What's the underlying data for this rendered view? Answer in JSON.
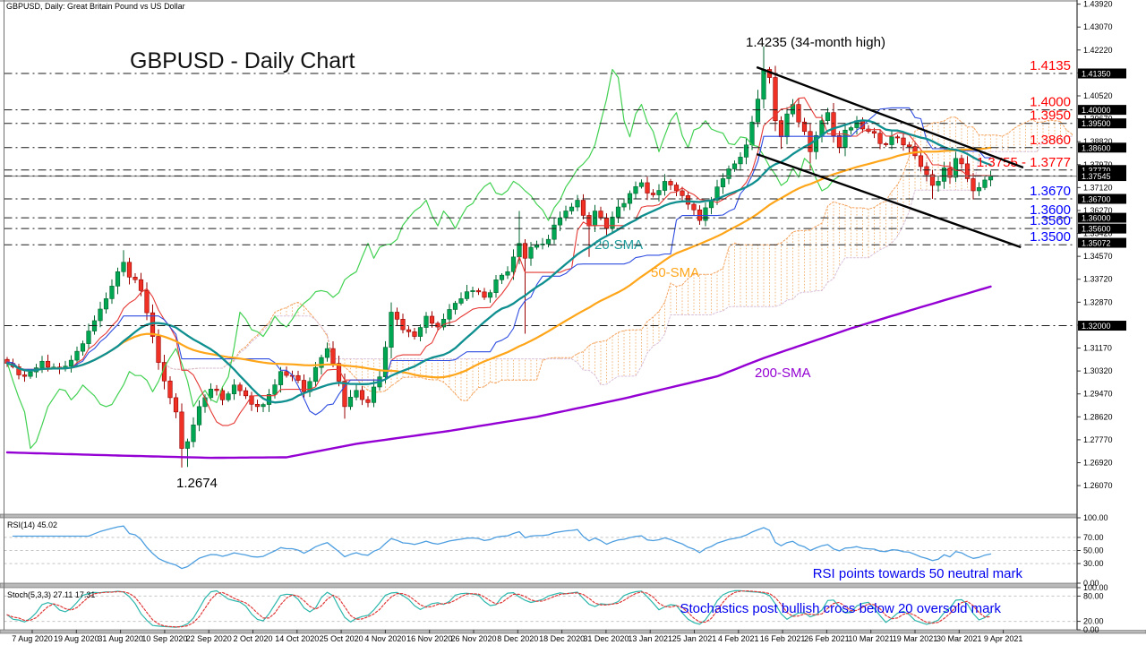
{
  "window": {
    "symbol_label": "GBPUSD, Daily: Great Britain Pound vs US Dollar"
  },
  "chart_data": {
    "type": "candlestick",
    "title": "GBPUSD - Daily Chart",
    "instrument": "GBPUSD",
    "timeframe": "Daily",
    "x_labels": [
      "7 Aug 2020",
      "19 Aug 2020",
      "31 Aug 2020",
      "10 Sep 2020",
      "22 Sep 2020",
      "2 Oct 2020",
      "14 Oct 2020",
      "25 Oct 2020",
      "4 Nov 2020",
      "16 Nov 2020",
      "26 Nov 2020",
      "8 Dec 2020",
      "18 Dec 2020",
      "31 Dec 2020",
      "13 Jan 2021",
      "25 Jan 2021",
      "4 Feb 2021",
      "16 Feb 2021",
      "26 Feb 2021",
      "10 Mar 2021",
      "19 Mar 2021",
      "30 Mar 2021",
      "9 Apr 2021"
    ],
    "main": {
      "bars": 170,
      "price_top": 1.4404,
      "price_bottom": 1.2501,
      "current_price": 1.37545,
      "axis_ticks": [
        1.4392,
        1.4307,
        1.4222,
        1.4137,
        1.4052,
        1.3967,
        1.3882,
        1.3797,
        1.3712,
        1.3627,
        1.3542,
        1.3457,
        1.3372,
        1.3287,
        1.3202,
        1.3117,
        1.3032,
        1.2947,
        1.2862,
        1.2777,
        1.2692,
        1.2607
      ],
      "axis_boxes": [
        {
          "label": "1.41350",
          "price": 1.4135
        },
        {
          "label": "1.40000",
          "price": 1.4
        },
        {
          "label": "1.39500",
          "price": 1.395
        },
        {
          "label": "1.38600",
          "price": 1.386
        },
        {
          "label": "1.37770",
          "price": 1.3777
        },
        {
          "label": "1.37545",
          "price": 1.37545
        },
        {
          "label": "1.36700",
          "price": 1.367
        },
        {
          "label": "1.36000",
          "price": 1.36
        },
        {
          "label": "1.35600",
          "price": 1.356
        },
        {
          "label": "1.35072",
          "price": 1.35072
        },
        {
          "label": "1.32000",
          "price": 1.32
        }
      ],
      "levels": [
        {
          "label": "1.4135",
          "price": 1.4135,
          "color": "#FF0000"
        },
        {
          "label": "1.4000",
          "price": 1.4,
          "color": "#FF0000"
        },
        {
          "label": "1.3950",
          "price": 1.395,
          "color": "#FF0000"
        },
        {
          "label": "1.3860",
          "price": 1.386,
          "color": "#FF0000"
        },
        {
          "label": "1.3755 - 1.3777",
          "price": 1.3777,
          "price2": 1.3755,
          "color": "#FF0000"
        },
        {
          "label": "1.3670",
          "price": 1.367,
          "color": "#0000FF"
        },
        {
          "label": "1.3600",
          "price": 1.36,
          "color": "#0000FF"
        },
        {
          "label": "1.3560",
          "price": 1.356,
          "color": "#0000FF"
        },
        {
          "label": "1.3500",
          "price": 1.35,
          "color": "#0000FF"
        },
        {
          "label": "",
          "price": 1.32,
          "color": "#000000"
        }
      ],
      "close_anchors": [
        [
          0,
          1.306
        ],
        [
          3,
          1.3012
        ],
        [
          6,
          1.3068
        ],
        [
          9,
          1.304
        ],
        [
          12,
          1.3105
        ],
        [
          14,
          1.318
        ],
        [
          17,
          1.33
        ],
        [
          19,
          1.34
        ],
        [
          20,
          1.3435
        ],
        [
          21,
          1.338
        ],
        [
          23,
          1.333
        ],
        [
          25,
          1.316
        ],
        [
          27,
          1.2995
        ],
        [
          29,
          1.288
        ],
        [
          30,
          1.2745
        ],
        [
          31,
          1.277
        ],
        [
          33,
          1.29
        ],
        [
          35,
          1.2965
        ],
        [
          37,
          1.2925
        ],
        [
          39,
          1.298
        ],
        [
          41,
          1.294
        ],
        [
          43,
          1.29
        ],
        [
          45,
          1.2945
        ],
        [
          47,
          1.303
        ],
        [
          49,
          1.3015
        ],
        [
          51,
          1.2955
        ],
        [
          53,
          1.3045
        ],
        [
          55,
          1.3115
        ],
        [
          56,
          1.306
        ],
        [
          58,
          1.29
        ],
        [
          60,
          1.296
        ],
        [
          62,
          1.2915
        ],
        [
          64,
          1.301
        ],
        [
          66,
          1.325
        ],
        [
          68,
          1.3185
        ],
        [
          70,
          1.316
        ],
        [
          72,
          1.3235
        ],
        [
          74,
          1.3195
        ],
        [
          76,
          1.326
        ],
        [
          78,
          1.33
        ],
        [
          80,
          1.333
        ],
        [
          82,
          1.3305
        ],
        [
          84,
          1.337
        ],
        [
          86,
          1.34
        ],
        [
          88,
          1.3505
        ],
        [
          89,
          1.345
        ],
        [
          91,
          1.35
        ],
        [
          93,
          1.352
        ],
        [
          95,
          1.36
        ],
        [
          97,
          1.364
        ],
        [
          98,
          1.3665
        ],
        [
          100,
          1.357
        ],
        [
          101,
          1.3625
        ],
        [
          103,
          1.356
        ],
        [
          105,
          1.364
        ],
        [
          107,
          1.369
        ],
        [
          109,
          1.373
        ],
        [
          111,
          1.3685
        ],
        [
          113,
          1.3735
        ],
        [
          115,
          1.37
        ],
        [
          117,
          1.365
        ],
        [
          119,
          1.359
        ],
        [
          121,
          1.3665
        ],
        [
          123,
          1.3745
        ],
        [
          125,
          1.38
        ],
        [
          127,
          1.387
        ],
        [
          128,
          1.3955
        ],
        [
          129,
          1.404
        ],
        [
          130,
          1.415
        ],
        [
          131,
          1.412
        ],
        [
          132,
          1.396
        ],
        [
          133,
          1.39
        ],
        [
          134,
          1.3985
        ],
        [
          135,
          1.402
        ],
        [
          136,
          1.3955
        ],
        [
          137,
          1.392
        ],
        [
          138,
          1.3845
        ],
        [
          139,
          1.3905
        ],
        [
          140,
          1.396
        ],
        [
          141,
          1.399
        ],
        [
          142,
          1.3905
        ],
        [
          143,
          1.386
        ],
        [
          144,
          1.3925
        ],
        [
          146,
          1.396
        ],
        [
          148,
          1.392
        ],
        [
          150,
          1.3875
        ],
        [
          152,
          1.39
        ],
        [
          154,
          1.387
        ],
        [
          156,
          1.383
        ],
        [
          158,
          1.376
        ],
        [
          159,
          1.372
        ],
        [
          160,
          1.3735
        ],
        [
          161,
          1.3785
        ],
        [
          162,
          1.375
        ],
        [
          163,
          1.382
        ],
        [
          164,
          1.38
        ],
        [
          165,
          1.3745
        ],
        [
          166,
          1.37
        ],
        [
          167,
          1.3712
        ],
        [
          168,
          1.374
        ],
        [
          169,
          1.37545
        ]
      ],
      "wick_overrides": {
        "20": {
          "h": 1.348
        },
        "30": {
          "l": 1.2674
        },
        "31": {
          "l": 1.2676
        },
        "58": {
          "l": 1.2855
        },
        "88": {
          "h": 1.3625
        },
        "89": {
          "l": 1.317
        },
        "100": {
          "l": 1.3455
        },
        "130": {
          "h": 1.4235
        },
        "133": {
          "l": 1.3855
        },
        "138": {
          "l": 1.378
        },
        "159": {
          "l": 1.367
        },
        "166": {
          "l": 1.3668
        }
      },
      "sma200_anchors": [
        [
          0,
          1.273
        ],
        [
          20,
          1.2718
        ],
        [
          35,
          1.271
        ],
        [
          48,
          1.2712
        ],
        [
          60,
          1.2762
        ],
        [
          76,
          1.281
        ],
        [
          91,
          1.2862
        ],
        [
          106,
          1.293
        ],
        [
          122,
          1.3012
        ],
        [
          130,
          1.308
        ],
        [
          145,
          1.319
        ],
        [
          156,
          1.3262
        ],
        [
          169,
          1.3345
        ]
      ],
      "channel_lines": {
        "upper": [
          [
            128.8,
            1.41582
          ],
          [
            174.6,
            1.37862
          ]
        ],
        "lower": [
          [
            128.8,
            1.38362
          ],
          [
            174.2,
            1.34907
          ]
        ]
      },
      "annotations": {
        "peak": "1.4235 (34-month high)",
        "low": "1.2674",
        "sma20": "20-SMA",
        "sma50": "50-SMA",
        "sma200": "200-SMA"
      }
    },
    "rsi": {
      "label": "RSI(14) 45.02",
      "period": 14,
      "last_value": 45.02,
      "grid": [
        70,
        50,
        30
      ],
      "axis_ticks": [
        [
          "100.00",
          100
        ],
        [
          "70.00",
          70
        ],
        [
          "50.00",
          50
        ],
        [
          "30.00",
          30
        ],
        [
          "0.00",
          0
        ]
      ],
      "note": "RSI points towards 50 neutral mark"
    },
    "stoch": {
      "label": "Stoch(5,3,3) 27.11 17.31",
      "k_last": 27.11,
      "d_last": 17.31,
      "grid": [
        80,
        20
      ],
      "axis_ticks": [
        [
          "100.00",
          100
        ],
        [
          "80.00",
          80
        ],
        [
          "20.00",
          20
        ],
        [
          "0.00",
          0
        ]
      ],
      "note": "Stochastics post bullish cross below 20 oversold mark"
    }
  },
  "colors": {
    "up_fill": "#00A651",
    "up_stroke": "#00662F",
    "down_fill": "#EE3124",
    "down_stroke": "#9A0000",
    "sma20": "#0F8F8F",
    "sma50": "#FFA519",
    "sma200": "#9400D3",
    "tenkan": "#E53935",
    "kijun": "#2E4CE0",
    "chikou": "#42D152",
    "senkou_a": "#F4A460",
    "senkou_b": "#D8BFD8",
    "cloud_hatch": "#F0A95F",
    "rsi": "#4D9EE0",
    "stoch_k": "#2CB7AC",
    "stoch_d": "#E03A3A",
    "level_line": "#1a1a1a",
    "price_line": "#808080",
    "channel": "#000000",
    "grid": "#c4c4c4",
    "box_bg": "#000000",
    "box_text": "#FFFFFF",
    "note_blue": "#0000EE",
    "separator": "#b9b9b9",
    "border": "#6e6e6e"
  }
}
